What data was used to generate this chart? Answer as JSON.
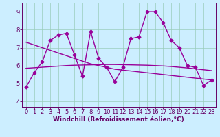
{
  "xlabel": "Windchill (Refroidissement éolien,°C)",
  "x_values": [
    0,
    1,
    2,
    3,
    4,
    5,
    6,
    7,
    8,
    9,
    10,
    11,
    12,
    13,
    14,
    15,
    16,
    17,
    18,
    19,
    20,
    21,
    22,
    23
  ],
  "y_main": [
    4.8,
    5.6,
    6.2,
    7.4,
    7.7,
    7.8,
    6.6,
    5.4,
    7.9,
    6.4,
    5.9,
    5.1,
    5.9,
    7.5,
    7.6,
    9.0,
    9.0,
    8.4,
    7.4,
    7.0,
    6.0,
    5.9,
    4.9,
    5.2
  ],
  "y_reg1": [
    7.3,
    7.15,
    7.0,
    6.85,
    6.7,
    6.55,
    6.4,
    6.25,
    6.1,
    6.0,
    5.9,
    5.8,
    5.75,
    5.7,
    5.65,
    5.6,
    5.55,
    5.5,
    5.45,
    5.4,
    5.35,
    5.3,
    5.25,
    5.2
  ],
  "y_reg2": [
    5.85,
    5.88,
    5.91,
    5.94,
    5.97,
    6.0,
    6.02,
    6.03,
    6.04,
    6.05,
    6.06,
    6.06,
    6.05,
    6.04,
    6.03,
    6.02,
    6.0,
    5.98,
    5.95,
    5.91,
    5.87,
    5.82,
    5.77,
    5.72
  ],
  "xlim": [
    -0.5,
    23.5
  ],
  "ylim": [
    3.7,
    9.5
  ],
  "yticks": [
    4,
    5,
    6,
    7,
    8,
    9
  ],
  "xticks": [
    0,
    1,
    2,
    3,
    4,
    5,
    6,
    7,
    8,
    9,
    10,
    11,
    12,
    13,
    14,
    15,
    16,
    17,
    18,
    19,
    20,
    21,
    22,
    23
  ],
  "line_color": "#990099",
  "bg_color": "#cceeff",
  "grid_color": "#99ccbb",
  "marker": "D",
  "markersize": 2.5,
  "linewidth": 1.0,
  "font_color": "#660066",
  "xlabel_fontsize": 6.5,
  "tick_fontsize": 6.0
}
